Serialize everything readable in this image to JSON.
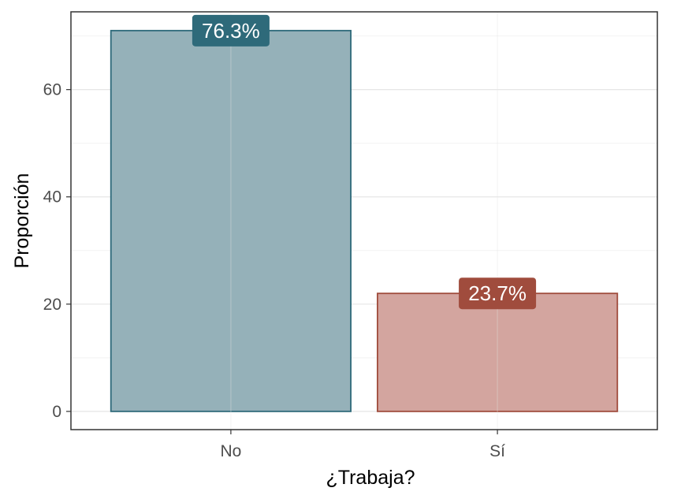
{
  "chart_data": {
    "type": "bar",
    "title": "",
    "xlabel": "¿Trabaja?",
    "ylabel": "Proporción",
    "categories": [
      "No",
      "Sí"
    ],
    "values": [
      71,
      22
    ],
    "labels": [
      "76.3%",
      "23.7%"
    ],
    "ylim": [
      -3.4,
      74.5
    ],
    "yticks": [
      0,
      20,
      40,
      60
    ],
    "ytick_labels": [
      "0",
      "20",
      "40",
      "60"
    ],
    "grid": true,
    "colors": {
      "No": {
        "fill": "#95b1b9",
        "stroke": "#2e6a7a",
        "label_bg": "#2e6a7a"
      },
      "Sí": {
        "fill": "#d3a59f",
        "stroke": "#a04c3d",
        "label_bg": "#a04c3d"
      }
    }
  }
}
